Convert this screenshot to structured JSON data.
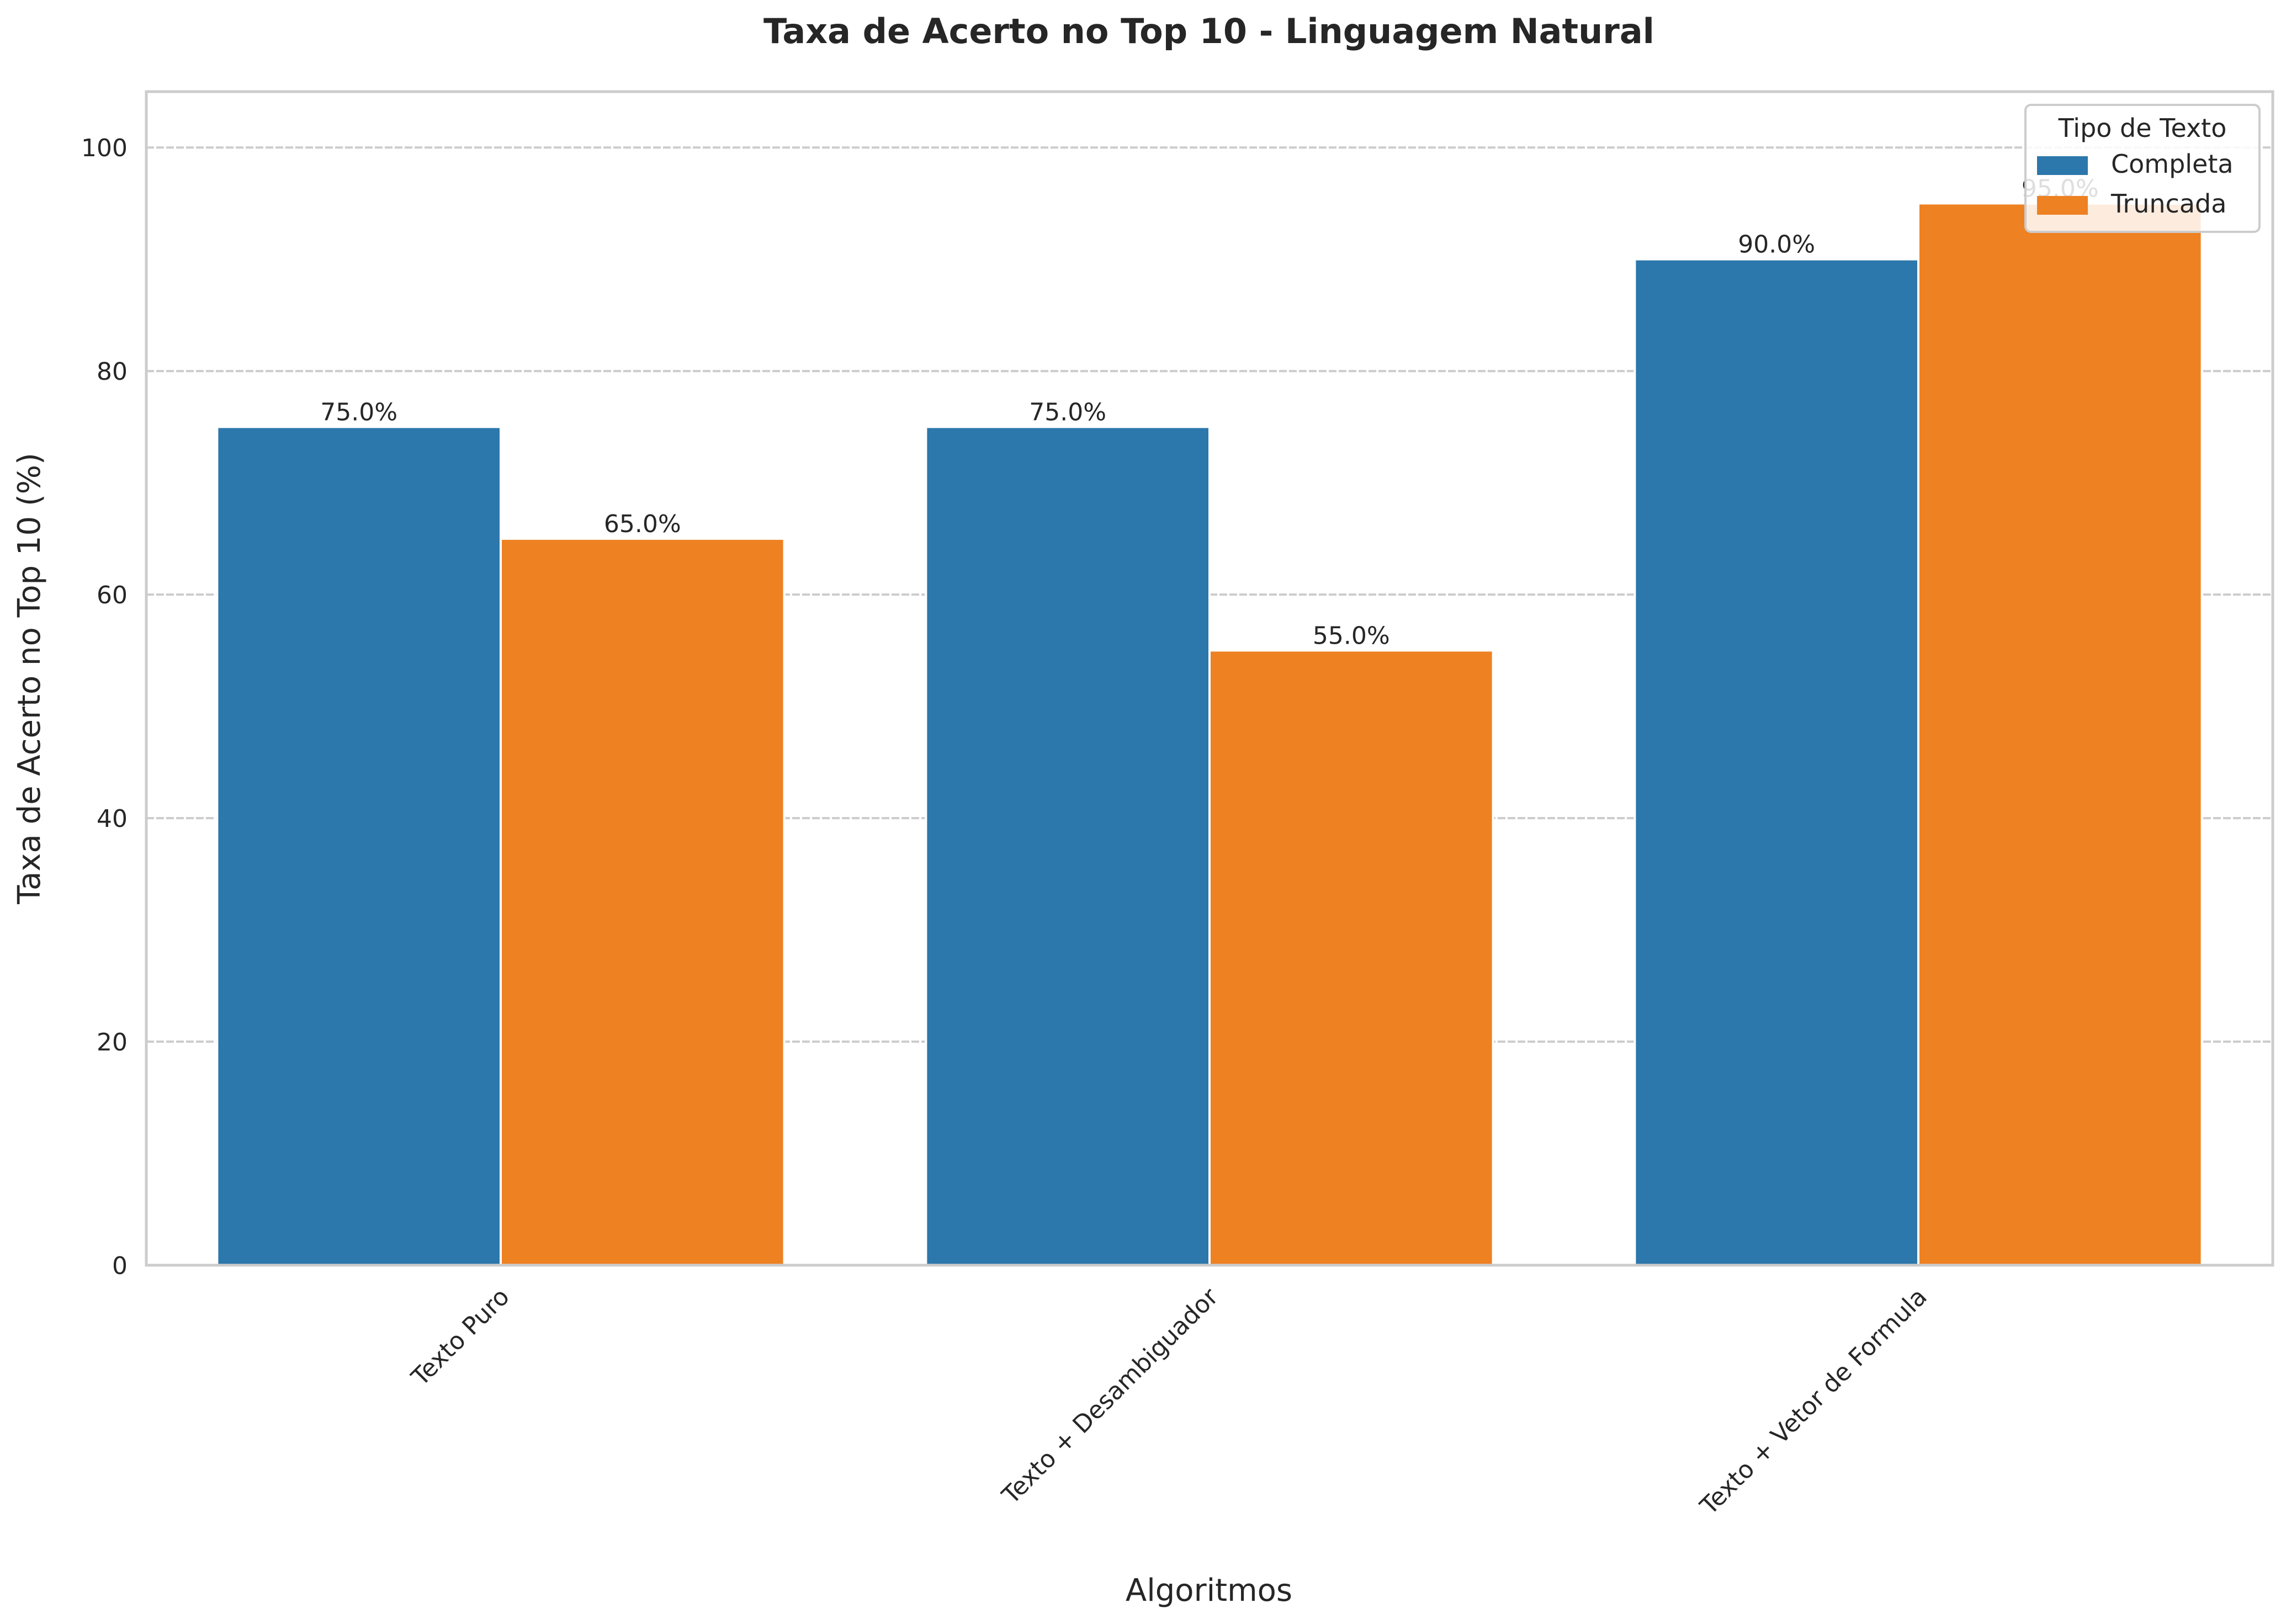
{
  "chart_data": {
    "type": "bar",
    "title": "Taxa de Acerto no Top 10 - Linguagem Natural",
    "xlabel": "Algoritmos",
    "ylabel": "Taxa de Acerto no Top 10 (%)",
    "categories": [
      "Texto Puro",
      "Texto + Desambiguador",
      "Texto + Vetor de Formula"
    ],
    "series": [
      {
        "name": "Completa",
        "values": [
          75.0,
          75.0,
          90.0
        ],
        "labels": [
          "75.0%",
          "75.0%",
          "90.0%"
        ],
        "color": "#2c77ab"
      },
      {
        "name": "Truncada",
        "values": [
          65.0,
          55.0,
          95.0
        ],
        "labels": [
          "65.0%",
          "55.0%",
          "95.0%"
        ],
        "color": "#ee8122"
      }
    ],
    "ylim": [
      0,
      105
    ],
    "yticks": [
      0,
      20,
      40,
      60,
      80,
      100
    ],
    "grid": true,
    "legend": {
      "title": "Tipo de Texto",
      "placement": "top-right"
    }
  }
}
